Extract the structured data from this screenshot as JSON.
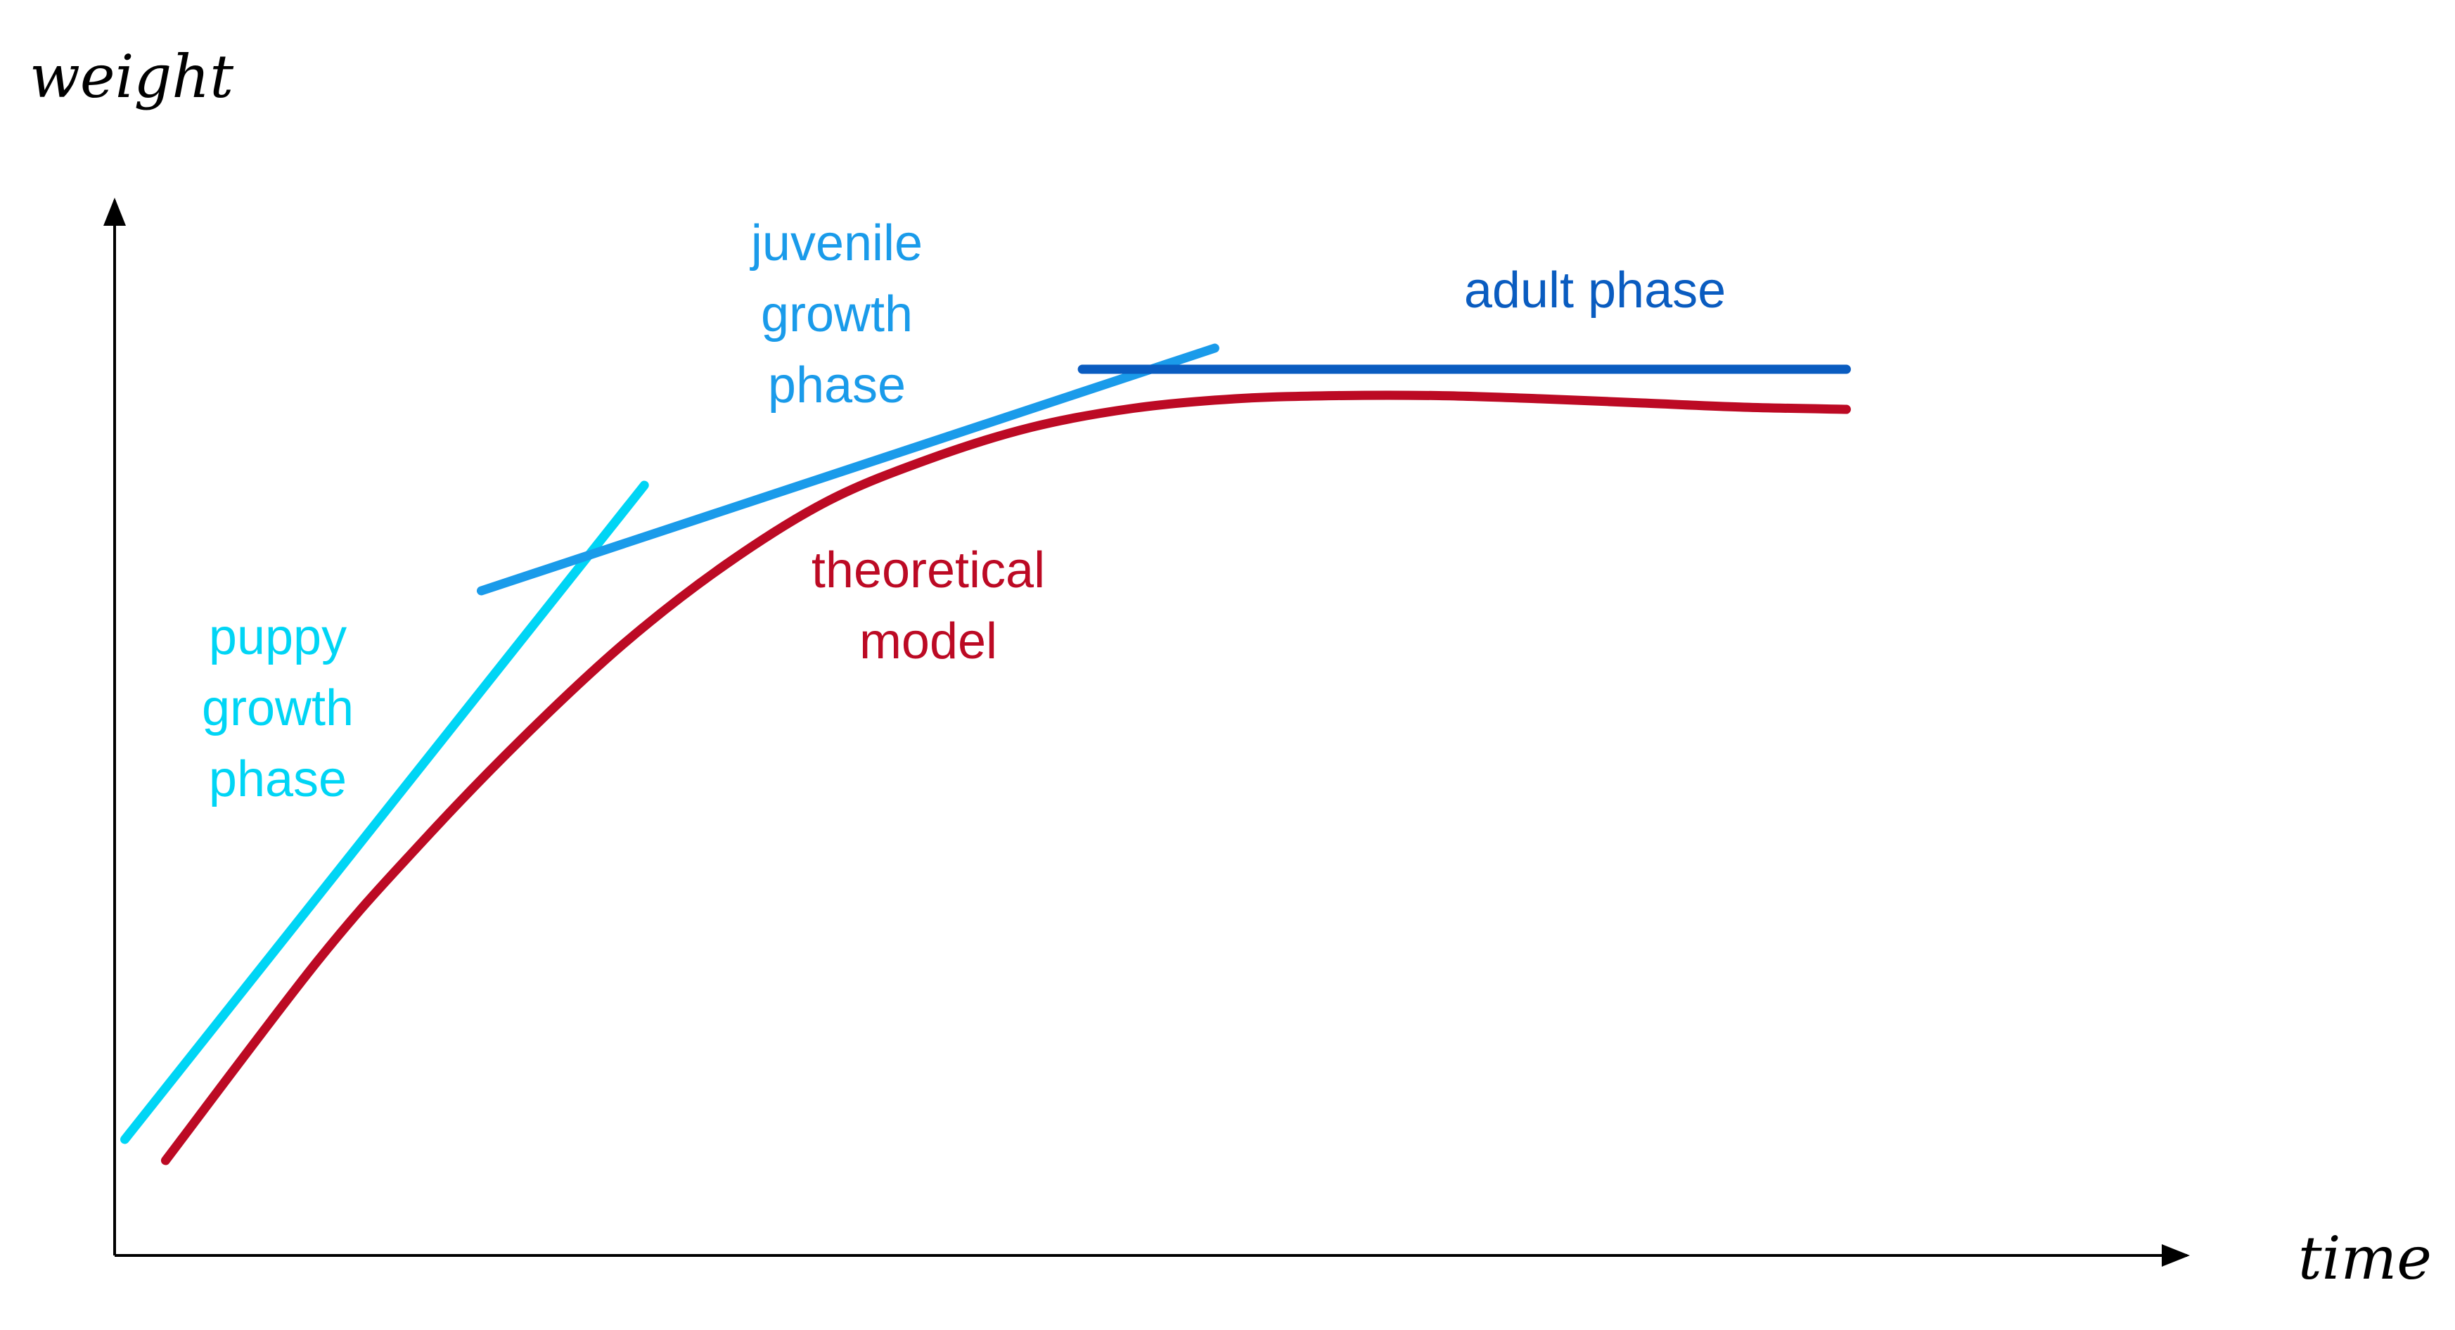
{
  "chart_data": {
    "type": "line",
    "xlabel": "time",
    "ylabel": "weight",
    "xlim": [
      0,
      10
    ],
    "ylim": [
      0,
      10
    ],
    "grid": false,
    "legend": "none (series are labelled directly on the plot)",
    "series": [
      {
        "name": "puppy growth phase",
        "label_lines": [
          "puppy",
          "growth",
          "phase"
        ],
        "color": "#00D5F5",
        "x": [
          0.05,
          2.6
        ],
        "y": [
          1.1,
          7.3
        ]
      },
      {
        "name": "juvenile growth phase",
        "label_lines": [
          "juvenile",
          "growth",
          "phase"
        ],
        "color": "#1A9BEA",
        "x": [
          1.8,
          5.4
        ],
        "y": [
          6.3,
          8.6
        ]
      },
      {
        "name": "adult phase",
        "label_lines": [
          "adult phase"
        ],
        "color": "#0A5CC0",
        "x": [
          4.75,
          8.5
        ],
        "y": [
          8.4,
          8.4
        ]
      },
      {
        "name": "theoretical model",
        "label_lines": [
          "theoretical",
          "model"
        ],
        "color": "#BC0A24",
        "x": [
          0.25,
          1.0,
          1.5,
          2.0,
          2.5,
          3.0,
          3.5,
          4.0,
          4.5,
          5.0,
          5.5,
          6.0,
          6.5,
          7.0,
          7.5,
          8.0,
          8.5
        ],
        "y": [
          0.9,
          2.8,
          3.9,
          4.9,
          5.8,
          6.55,
          7.15,
          7.55,
          7.85,
          8.03,
          8.12,
          8.15,
          8.15,
          8.12,
          8.08,
          8.04,
          8.02
        ]
      }
    ]
  }
}
